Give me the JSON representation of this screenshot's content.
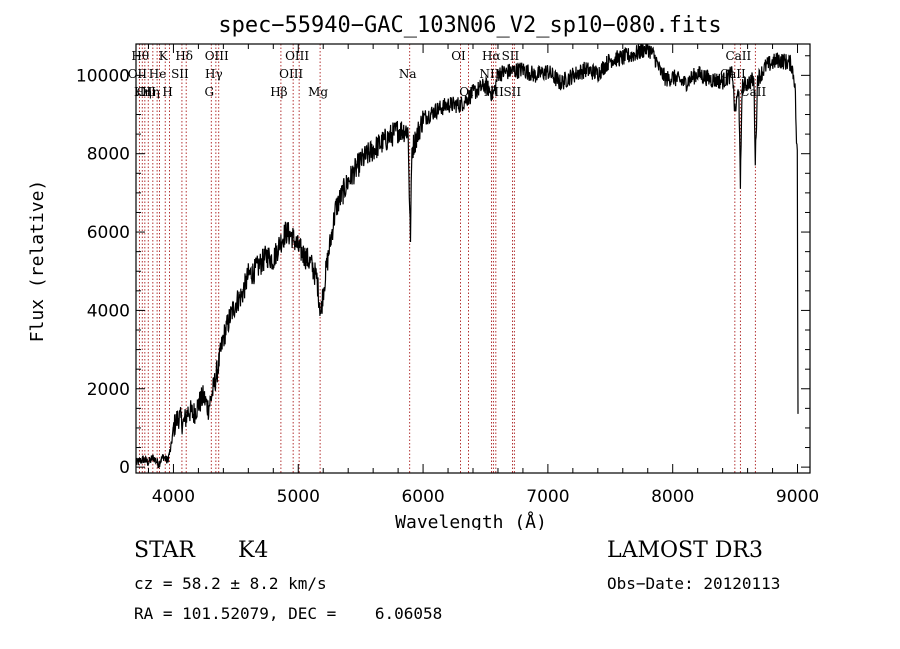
{
  "chart_data": {
    "type": "line",
    "title": "spec−55940−GAC_103N06_V2_sp10−080.fits",
    "xlabel": "Wavelength (Å)",
    "ylabel": "Flux (relative)",
    "xlim": [
      3700,
      9100
    ],
    "ylim": [
      -150,
      10800
    ],
    "xticks": [
      4000,
      5000,
      6000,
      7000,
      8000,
      9000
    ],
    "yticks": [
      0,
      2000,
      4000,
      6000,
      8000,
      10000
    ],
    "series": [
      {
        "name": "flux",
        "anchors": [
          [
            3700,
            100
          ],
          [
            3760,
            200
          ],
          [
            3800,
            120
          ],
          [
            3840,
            250
          ],
          [
            3880,
            80
          ],
          [
            3920,
            280
          ],
          [
            3950,
            150
          ],
          [
            3980,
            480
          ],
          [
            4000,
            1000
          ],
          [
            4040,
            1300
          ],
          [
            4080,
            1100
          ],
          [
            4120,
            1450
          ],
          [
            4160,
            1350
          ],
          [
            4200,
            1600
          ],
          [
            4240,
            1800
          ],
          [
            4280,
            1500
          ],
          [
            4320,
            2000
          ],
          [
            4360,
            2600
          ],
          [
            4400,
            3300
          ],
          [
            4450,
            3800
          ],
          [
            4500,
            4200
          ],
          [
            4550,
            4400
          ],
          [
            4600,
            4900
          ],
          [
            4650,
            5000
          ],
          [
            4700,
            5200
          ],
          [
            4750,
            5400
          ],
          [
            4800,
            5300
          ],
          [
            4850,
            5700
          ],
          [
            4900,
            6000
          ],
          [
            4950,
            5900
          ],
          [
            5000,
            5600
          ],
          [
            5050,
            5400
          ],
          [
            5100,
            5200
          ],
          [
            5150,
            4800
          ],
          [
            5180,
            3900
          ],
          [
            5200,
            4500
          ],
          [
            5250,
            5600
          ],
          [
            5300,
            6600
          ],
          [
            5400,
            7300
          ],
          [
            5500,
            7800
          ],
          [
            5600,
            8100
          ],
          [
            5700,
            8350
          ],
          [
            5800,
            8600
          ],
          [
            5880,
            8600
          ],
          [
            5895,
            6200
          ],
          [
            5900,
            5900
          ],
          [
            5910,
            8100
          ],
          [
            6000,
            8900
          ],
          [
            6100,
            9100
          ],
          [
            6200,
            9250
          ],
          [
            6300,
            9250
          ],
          [
            6400,
            9550
          ],
          [
            6500,
            9750
          ],
          [
            6560,
            9500
          ],
          [
            6580,
            9700
          ],
          [
            6600,
            10050
          ],
          [
            6700,
            10100
          ],
          [
            6800,
            10150
          ],
          [
            6900,
            10000
          ],
          [
            7000,
            10100
          ],
          [
            7100,
            9800
          ],
          [
            7200,
            10000
          ],
          [
            7300,
            10150
          ],
          [
            7400,
            10050
          ],
          [
            7500,
            10400
          ],
          [
            7600,
            10450
          ],
          [
            7700,
            10550
          ],
          [
            7800,
            10700
          ],
          [
            7850,
            10500
          ],
          [
            7900,
            10100
          ],
          [
            7950,
            9900
          ],
          [
            8000,
            9950
          ],
          [
            8100,
            9800
          ],
          [
            8200,
            10050
          ],
          [
            8300,
            9900
          ],
          [
            8400,
            9850
          ],
          [
            8480,
            10050
          ],
          [
            8498,
            9000
          ],
          [
            8530,
            9700
          ],
          [
            8542,
            7000
          ],
          [
            8555,
            9700
          ],
          [
            8600,
            9800
          ],
          [
            8650,
            9900
          ],
          [
            8662,
            7800
          ],
          [
            8680,
            9900
          ],
          [
            8750,
            10250
          ],
          [
            8850,
            10400
          ],
          [
            8900,
            10350
          ],
          [
            8950,
            10300
          ],
          [
            8980,
            9800
          ],
          [
            8990,
            8500
          ],
          [
            9000,
            7800
          ],
          [
            9002,
            2000
          ],
          [
            9005,
            1000
          ]
        ]
      }
    ],
    "lines": [
      {
        "wave": 3727,
        "label": "OII",
        "row": 1
      },
      {
        "wave": 3750,
        "label": "Hθ",
        "row": 0
      },
      {
        "wave": 3771,
        "label": "Hη",
        "row": 2
      },
      {
        "wave": 3798,
        "label": "OII",
        "row": 2
      },
      {
        "wave": 3835,
        "label": "Hη",
        "row": 2
      },
      {
        "wave": 3869,
        "label": "",
        "row": 0
      },
      {
        "wave": 3889,
        "label": "He",
        "row": 1
      },
      {
        "wave": 3934,
        "label": "K",
        "row": 0
      },
      {
        "wave": 3969,
        "label": "H",
        "row": 2
      },
      {
        "wave": 4068,
        "label": "SII",
        "row": 1
      },
      {
        "wave": 4102,
        "label": "Hδ",
        "row": 0
      },
      {
        "wave": 4303,
        "label": "G",
        "row": 2
      },
      {
        "wave": 4340,
        "label": "Hγ",
        "row": 1
      },
      {
        "wave": 4363,
        "label": "OIII",
        "row": 0
      },
      {
        "wave": 4861,
        "label": "Hβ",
        "row": 2
      },
      {
        "wave": 4959,
        "label": "OIII",
        "row": 1
      },
      {
        "wave": 5007,
        "label": "OIII",
        "row": 0
      },
      {
        "wave": 5175,
        "label": "Mg",
        "row": 2
      },
      {
        "wave": 5893,
        "label": "Na",
        "row": 1
      },
      {
        "wave": 6300,
        "label": "OI",
        "row": 0
      },
      {
        "wave": 6364,
        "label": "OI",
        "row": 2
      },
      {
        "wave": 6548,
        "label": "NII",
        "row": 1
      },
      {
        "wave": 6563,
        "label": "Hα",
        "row": 0
      },
      {
        "wave": 6583,
        "label": "NII",
        "row": 2
      },
      {
        "wave": 6716,
        "label": "SII",
        "row": 0
      },
      {
        "wave": 6731,
        "label": "SII",
        "row": 2
      },
      {
        "wave": 8498,
        "label": "CaII",
        "row": 1
      },
      {
        "wave": 8542,
        "label": "CaII",
        "row": 0
      },
      {
        "wave": 8662,
        "label": "CaII",
        "row": 2
      }
    ]
  },
  "info": {
    "class_label": "STAR",
    "subclass_label": "K4",
    "survey": "LAMOST DR3",
    "cz": "cz = 58.2 ± 8.2 km/s",
    "obs_date": "Obs−Date: 20120113",
    "radec": "RA = 101.52079, DEC =    6.06058"
  },
  "colors": {
    "spectrum": "#000000",
    "line_marker": "#a00000",
    "background": "#ffffff"
  }
}
